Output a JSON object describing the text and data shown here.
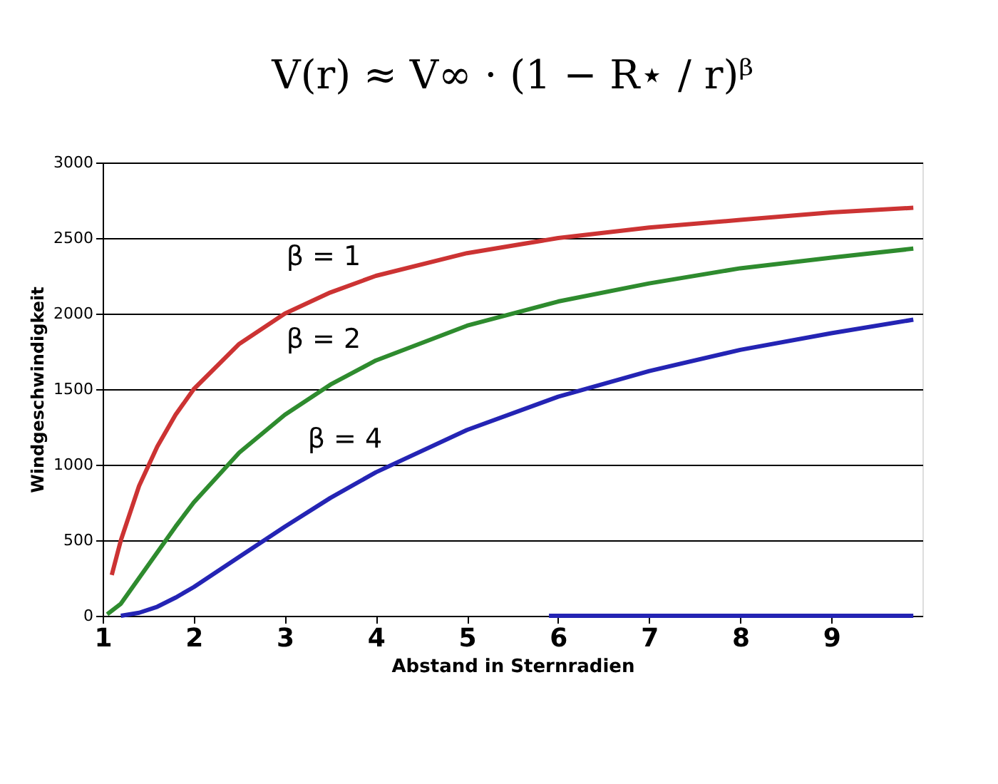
{
  "chart_data": {
    "type": "line",
    "title": "V(r) ≈ V∞ · (1 − R⋆ / r)ᵝ",
    "xlabel": "Abstand in Sternradien",
    "ylabel": "Windgeschwindigkeit",
    "xlim": [
      1,
      10
    ],
    "xticks": [
      1,
      2,
      3,
      4,
      5,
      6,
      7,
      8,
      9
    ],
    "ylim": [
      0,
      3000
    ],
    "yticks": [
      0,
      500,
      1000,
      1500,
      2000,
      2500,
      3000
    ],
    "grid": "y",
    "marker": "none",
    "line_style": "solid",
    "series": [
      {
        "color": "#cc3333",
        "x": [
          1.1,
          1.2,
          1.4,
          1.6,
          1.8,
          2,
          2.5,
          3,
          3.5,
          4,
          5,
          6,
          7,
          8,
          9,
          9.9
        ],
        "values": [
          270,
          500,
          860,
          1120,
          1330,
          1500,
          1800,
          2000,
          2140,
          2250,
          2400,
          2500,
          2570,
          2620,
          2670,
          2700
        ]
      },
      {
        "color": "#2e8b2e",
        "x": [
          1.05,
          1.2,
          1.4,
          1.6,
          1.8,
          2,
          2.5,
          3,
          3.5,
          4,
          5,
          6,
          7,
          8,
          9,
          9.9
        ],
        "values": [
          10,
          80,
          250,
          420,
          590,
          750,
          1080,
          1330,
          1530,
          1690,
          1920,
          2080,
          2200,
          2300,
          2370,
          2430
        ]
      },
      {
        "color": "#2424b4",
        "x": [
          1.2,
          1.4,
          1.6,
          1.8,
          2,
          2.5,
          3,
          3.5,
          4,
          5,
          6,
          7,
          8,
          9,
          9.9
        ],
        "values": [
          0,
          20,
          60,
          120,
          190,
          390,
          590,
          780,
          950,
          1230,
          1450,
          1620,
          1760,
          1870,
          1960
        ]
      },
      {
        "color": "#2424b4",
        "x": [
          5.9,
          9.9
        ],
        "values": [
          0,
          0
        ]
      }
    ],
    "annotations": [
      "β = 1",
      "β = 2",
      "β = 4"
    ]
  }
}
